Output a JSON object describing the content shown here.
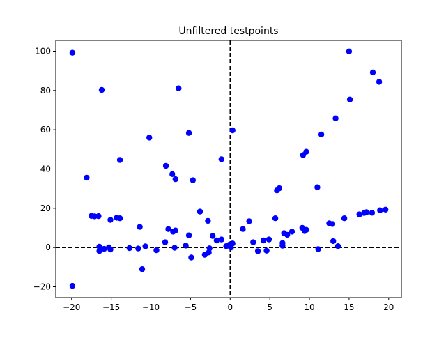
{
  "chart_data": {
    "type": "scatter",
    "title": "Unfiltered testpoints",
    "xlabel": "",
    "ylabel": "",
    "xlim": [
      -22,
      21.6
    ],
    "ylim": [
      -25.5,
      105.5
    ],
    "xticks": [
      -20,
      -15,
      -10,
      -5,
      0,
      5,
      10,
      15,
      20
    ],
    "yticks": [
      -20,
      0,
      20,
      40,
      60,
      80,
      100
    ],
    "grid": false,
    "reference_lines": [
      {
        "orientation": "horizontal",
        "value": 0,
        "style": "dashed",
        "color": "#000000"
      },
      {
        "orientation": "vertical",
        "value": 0,
        "style": "dashed",
        "color": "#000000"
      }
    ],
    "marker_color": "#0000ff",
    "series": [
      {
        "points": [
          [
            -19.9,
            99.2
          ],
          [
            -19.9,
            -19.5
          ],
          [
            -18.1,
            35.6
          ],
          [
            -17.5,
            16.1
          ],
          [
            -17.1,
            15.9
          ],
          [
            -16.6,
            16.0
          ],
          [
            -16.5,
            0.4
          ],
          [
            -16.5,
            -1.8
          ],
          [
            -16.2,
            80.3
          ],
          [
            -15.9,
            -0.7
          ],
          [
            -15.3,
            0.1
          ],
          [
            -15.1,
            -1.0
          ],
          [
            -15.1,
            14.1
          ],
          [
            -14.3,
            15.2
          ],
          [
            -13.9,
            14.9
          ],
          [
            -13.9,
            44.6
          ],
          [
            -12.7,
            -0.3
          ],
          [
            -11.6,
            -0.5
          ],
          [
            -11.4,
            10.5
          ],
          [
            -11.1,
            -11.0
          ],
          [
            -10.7,
            0.6
          ],
          [
            -10.2,
            56.0
          ],
          [
            -9.3,
            -1.4
          ],
          [
            -8.2,
            2.7
          ],
          [
            -8.1,
            41.6
          ],
          [
            -7.8,
            9.4
          ],
          [
            -7.3,
            37.4
          ],
          [
            -7.2,
            8.1
          ],
          [
            -7.0,
            -0.1
          ],
          [
            -6.9,
            8.7
          ],
          [
            -6.9,
            34.8
          ],
          [
            -6.5,
            81.1
          ],
          [
            -5.6,
            1.0
          ],
          [
            -5.2,
            6.2
          ],
          [
            -5.2,
            58.4
          ],
          [
            -4.9,
            -5.1
          ],
          [
            -4.7,
            34.3
          ],
          [
            -3.8,
            18.3
          ],
          [
            -3.2,
            -3.7
          ],
          [
            -2.8,
            13.6
          ],
          [
            -2.7,
            -2.5
          ],
          [
            -2.6,
            -0.4
          ],
          [
            -2.2,
            5.9
          ],
          [
            -1.7,
            3.6
          ],
          [
            -1.1,
            4.1
          ],
          [
            -1.1,
            45.0
          ],
          [
            -0.5,
            0.7
          ],
          [
            -0.1,
            1.4
          ],
          [
            0.1,
            0.0
          ],
          [
            0.3,
            2.1
          ],
          [
            0.3,
            59.7
          ],
          [
            1.6,
            9.4
          ],
          [
            2.4,
            13.4
          ],
          [
            2.9,
            2.7
          ],
          [
            3.5,
            -1.9
          ],
          [
            4.2,
            3.6
          ],
          [
            4.6,
            -1.6
          ],
          [
            4.9,
            4.1
          ],
          [
            5.7,
            14.9
          ],
          [
            5.9,
            29.1
          ],
          [
            6.2,
            30.2
          ],
          [
            6.6,
            0.9
          ],
          [
            6.6,
            2.3
          ],
          [
            6.8,
            7.3
          ],
          [
            7.2,
            6.5
          ],
          [
            7.8,
            8.1
          ],
          [
            9.1,
            10.0
          ],
          [
            9.2,
            47.1
          ],
          [
            9.4,
            8.4
          ],
          [
            9.6,
            48.8
          ],
          [
            9.6,
            9.0
          ],
          [
            11.0,
            30.7
          ],
          [
            11.1,
            -0.8
          ],
          [
            11.5,
            57.6
          ],
          [
            12.5,
            12.3
          ],
          [
            12.9,
            12.0
          ],
          [
            13.0,
            3.3
          ],
          [
            13.3,
            65.8
          ],
          [
            13.6,
            0.7
          ],
          [
            14.4,
            14.9
          ],
          [
            15.0,
            99.9
          ],
          [
            15.1,
            75.4
          ],
          [
            16.3,
            16.9
          ],
          [
            16.9,
            17.6
          ],
          [
            17.2,
            18.0
          ],
          [
            17.9,
            17.7
          ],
          [
            18.0,
            89.2
          ],
          [
            18.8,
            84.4
          ],
          [
            18.9,
            19.0
          ],
          [
            19.6,
            19.3
          ]
        ]
      }
    ]
  }
}
